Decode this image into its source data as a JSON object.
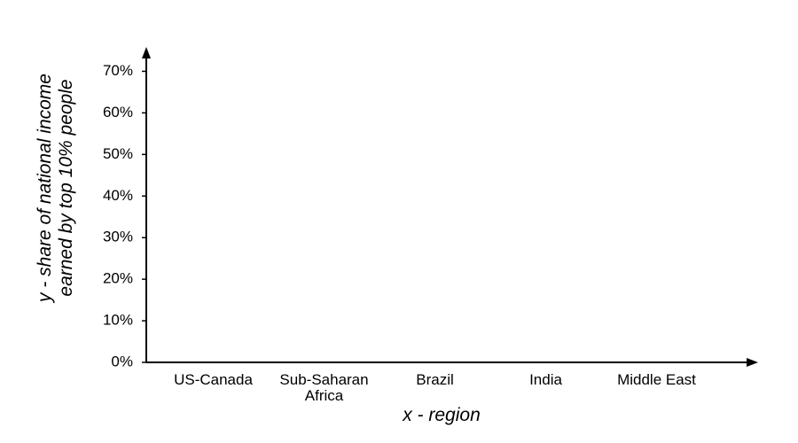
{
  "chart_data": {
    "type": "bar",
    "x_label": "x - region",
    "y_label": "y - share of national income earned by top 10% people",
    "categories": [
      "US-Canada",
      "Sub-Saharan Africa",
      "Brazil",
      "India",
      "Middle East"
    ],
    "ylim": [
      0,
      75
    ],
    "yticks": [
      {
        "value": 0,
        "label": "0%"
      },
      {
        "value": 10,
        "label": "10%"
      },
      {
        "value": 20,
        "label": "20%"
      },
      {
        "value": 30,
        "label": "30%"
      },
      {
        "value": 40,
        "label": "40%"
      },
      {
        "value": 50,
        "label": "50%"
      },
      {
        "value": 60,
        "label": "60%"
      },
      {
        "value": 70,
        "label": "70%"
      }
    ]
  }
}
